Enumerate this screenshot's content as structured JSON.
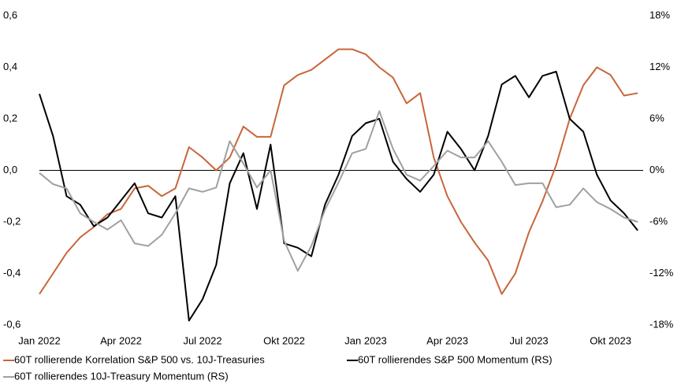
{
  "chart_data": {
    "type": "line",
    "x": [
      0,
      0.5,
      1,
      1.5,
      2,
      2.5,
      3,
      3.5,
      4,
      4.5,
      5,
      5.5,
      6,
      6.5,
      7,
      7.5,
      8,
      8.5,
      9,
      9.5,
      10,
      10.5,
      11,
      11.5,
      12,
      12.5,
      13,
      13.5,
      14,
      14.5,
      15,
      15.5,
      16,
      16.5,
      17,
      17.5,
      18,
      18.5,
      19,
      19.5,
      20,
      20.5,
      21,
      21.5,
      22
    ],
    "xlim": [
      0,
      22.2
    ],
    "xticks": [
      {
        "value": 0,
        "label": "Jan 2022"
      },
      {
        "value": 3,
        "label": "Apr 2022"
      },
      {
        "value": 6,
        "label": "Jul 2022"
      },
      {
        "value": 9,
        "label": "Okt 2022"
      },
      {
        "value": 12,
        "label": "Jan 2023"
      },
      {
        "value": 15,
        "label": "Apr 2023"
      },
      {
        "value": 18,
        "label": "Jul 2023"
      },
      {
        "value": 21,
        "label": "Okt 2023"
      }
    ],
    "ylim": [
      -0.6,
      0.6
    ],
    "yticks": [
      {
        "value": -0.6,
        "label": "-0,6"
      },
      {
        "value": -0.4,
        "label": "-0,4"
      },
      {
        "value": -0.2,
        "label": "-0,2"
      },
      {
        "value": 0,
        "label": "0,0"
      },
      {
        "value": 0.2,
        "label": "0,2"
      },
      {
        "value": 0.4,
        "label": "0,4"
      },
      {
        "value": 0.6,
        "label": "0,6"
      }
    ],
    "y2lim": [
      -18,
      18
    ],
    "y2ticks": [
      {
        "value": -18,
        "label": "-18%"
      },
      {
        "value": -12,
        "label": "-12%"
      },
      {
        "value": -6,
        "label": "-6%"
      },
      {
        "value": 0,
        "label": "0%"
      },
      {
        "value": 6,
        "label": "6%"
      },
      {
        "value": 12,
        "label": "12%"
      },
      {
        "value": 18,
        "label": "18%"
      }
    ],
    "series": [
      {
        "name": "60T rollierende Korrelation S&P 500 vs. 10J-Treasuries",
        "color": "#c8663a",
        "axis": "y",
        "values": [
          -0.48,
          -0.4,
          -0.32,
          -0.26,
          -0.22,
          -0.17,
          -0.15,
          -0.07,
          -0.06,
          -0.1,
          -0.07,
          0.09,
          0.05,
          0.0,
          0.05,
          0.17,
          0.13,
          0.13,
          0.33,
          0.37,
          0.39,
          0.43,
          0.47,
          0.47,
          0.45,
          0.4,
          0.36,
          0.26,
          0.3,
          0.05,
          -0.1,
          -0.2,
          -0.28,
          -0.35,
          -0.48,
          -0.4,
          -0.24,
          -0.12,
          0.02,
          0.2,
          0.33,
          0.4,
          0.37,
          0.29,
          0.3
        ]
      },
      {
        "name": "60T rollierendes S&P 500 Momentum (RS)",
        "color": "#000000",
        "axis": "y2",
        "values": [
          8.9,
          4.0,
          -3.0,
          -4.0,
          -6.5,
          -5.5,
          -3.5,
          -1.5,
          -5.0,
          -5.5,
          -3.0,
          -17.5,
          -15.0,
          -11.0,
          -1.5,
          2.0,
          -4.5,
          3.0,
          -8.5,
          -9.0,
          -10.0,
          -4.0,
          -0.5,
          4.0,
          5.5,
          6.0,
          1.0,
          -1.0,
          -2.5,
          -0.5,
          4.5,
          2.5,
          0.0,
          4.0,
          10.0,
          11.0,
          8.5,
          11.0,
          11.5,
          6.0,
          4.5,
          -0.5,
          -3.5,
          -5.0,
          -7.0
        ]
      },
      {
        "name": "60T rollierendes 10J-Treasury Momentum (RS)",
        "color": "#a0a0a0",
        "axis": "y2",
        "values": [
          -0.3,
          -1.6,
          -2.1,
          -5.0,
          -6.0,
          -6.9,
          -5.8,
          -8.5,
          -8.8,
          -7.5,
          -5.0,
          -2.1,
          -2.5,
          -2.0,
          3.4,
          0.8,
          -2.0,
          0.0,
          -8.2,
          -11.7,
          -8.8,
          -4.6,
          -1.4,
          2.0,
          2.5,
          6.9,
          2.5,
          -0.5,
          -1.2,
          0.5,
          2.3,
          1.5,
          1.5,
          3.4,
          1.0,
          -1.7,
          -1.5,
          -1.5,
          -4.3,
          -4.0,
          -2.1,
          -3.7,
          -4.5,
          -5.5,
          -6.0
        ]
      }
    ],
    "zero_line": true
  }
}
